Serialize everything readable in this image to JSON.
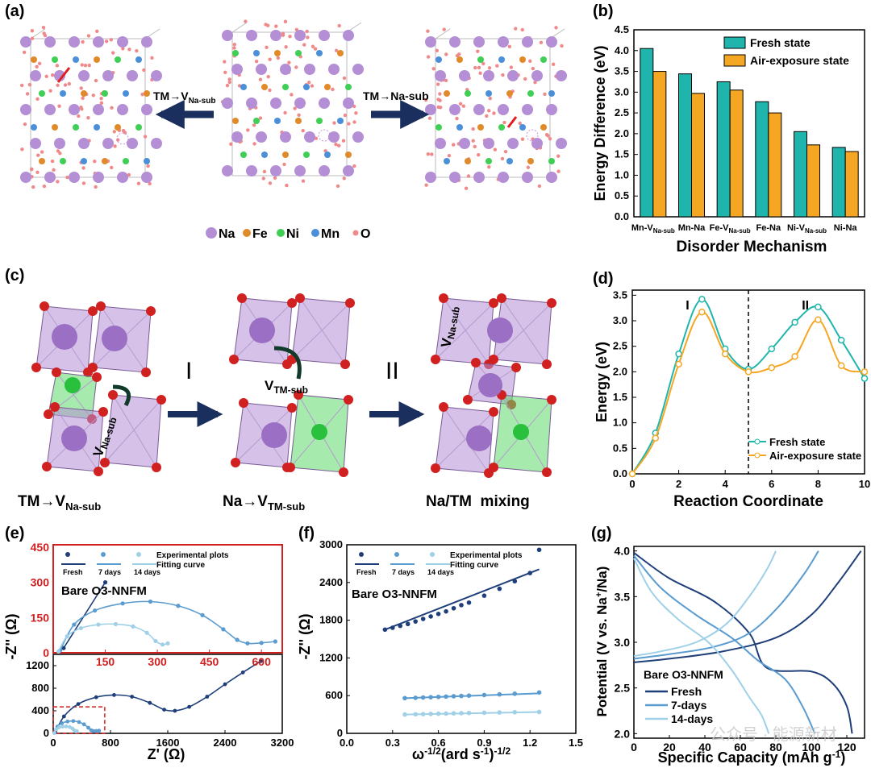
{
  "panels": {
    "a": {
      "label": "(a)",
      "arrow_left": "TM→V",
      "arrow_left_sub": "Na-sub",
      "arrow_right": "TM→Na-sub",
      "legend": [
        "Na",
        "Fe",
        "Ni",
        "Mn",
        "O"
      ],
      "colors": {
        "Na": "#b48fd6",
        "Fe": "#e08a2a",
        "Ni": "#3ecf54",
        "Mn": "#4a8fd8",
        "O": "#f08a8a"
      }
    },
    "c": {
      "label": "(c)",
      "step1": "I",
      "step2": "II",
      "struct1_vac": "V",
      "struct1_vac_sub": "Na-sub",
      "struct2_vac": "V",
      "struct2_vac_sub": "TM-sub",
      "struct3_vac": "V",
      "struct3_vac_sub": "Na-sub",
      "cap1": "TM→V",
      "cap1_sub": "Na-sub",
      "cap2": "Na→V",
      "cap2_sub": "TM-sub",
      "cap3": "Na/TM  mixing"
    }
  },
  "chart_data": [
    {
      "id": "b",
      "label": "(b)",
      "type": "bar",
      "categories": [
        "Mn-V",
        "Mn-Na",
        "Fe-V",
        "Fe-Na",
        "Ni-V",
        "Ni-Na"
      ],
      "category_subs": [
        "Na-sub",
        "",
        "Na-sub",
        "",
        "Na-sub",
        ""
      ],
      "series": [
        {
          "name": "Fresh state",
          "color": "#1fb5ad",
          "values": [
            4.05,
            3.44,
            3.25,
            2.77,
            2.05,
            1.67
          ]
        },
        {
          "name": "Air-exposure state",
          "color": "#f5a623",
          "values": [
            3.5,
            2.97,
            3.05,
            2.5,
            1.73,
            1.57
          ]
        }
      ],
      "xlabel": "Disorder Mechanism",
      "ylabel": "Energy Difference (eV)",
      "ylim": [
        0,
        4.5
      ],
      "yticks": [
        "0.0",
        "0.5",
        "1.0",
        "1.5",
        "2.0",
        "2.5",
        "3.0",
        "3.5",
        "4.0",
        "4.5"
      ]
    },
    {
      "id": "d",
      "label": "(d)",
      "type": "line",
      "x": [
        0,
        1,
        2,
        3,
        4,
        5,
        6,
        7,
        8,
        9,
        10
      ],
      "series": [
        {
          "name": "Fresh state",
          "color": "#1fb5ad",
          "values": [
            0.0,
            0.8,
            2.35,
            3.42,
            2.45,
            2.05,
            2.45,
            2.97,
            3.27,
            2.62,
            1.87
          ]
        },
        {
          "name": "Air-exposure state",
          "color": "#f5a623",
          "values": [
            0.0,
            0.7,
            2.15,
            3.17,
            2.35,
            2.0,
            2.08,
            2.3,
            3.02,
            2.12,
            2.0
          ]
        }
      ],
      "regions": [
        "I",
        "II"
      ],
      "divider_x": 5,
      "xlabel": "Reaction Coordinate",
      "ylabel": "Energy (eV)",
      "xlim": [
        0,
        10
      ],
      "ylim": [
        0,
        3.6
      ],
      "xticks": [
        "0",
        "2",
        "4",
        "6",
        "8",
        "10"
      ],
      "yticks": [
        "0.0",
        "0.5",
        "1.0",
        "1.5",
        "2.0",
        "2.5",
        "3.0",
        "3.5"
      ]
    },
    {
      "id": "e",
      "label": "(e)",
      "type": "scatter",
      "annotation": "Bare O3-NNFM",
      "legend_points": "Experimental plots",
      "legend_fit": "Fitting curve",
      "legend_groups": [
        "Fresh",
        "7 days",
        "14 days"
      ],
      "inset_xticks": [
        "150",
        "300",
        "450",
        "600"
      ],
      "inset_yticks": [
        "0",
        "150",
        "300",
        "450"
      ],
      "inset_xlim": [
        0,
        660
      ],
      "inset_ylim": [
        0,
        460
      ],
      "xticks": [
        "0",
        "800",
        "1600",
        "2400",
        "3200"
      ],
      "yticks": [
        "0",
        "400",
        "800",
        "1200"
      ],
      "xlim": [
        0,
        3200
      ],
      "ylim": [
        0,
        1400
      ],
      "xlabel": "Z' (Ω)",
      "ylabel": "-Z'' (Ω)",
      "series": [
        {
          "name": "Fresh",
          "color": "#1f3f7a",
          "points": [
            [
              30,
              20
            ],
            [
              150,
              300
            ],
            [
              350,
              520
            ],
            [
              600,
              640
            ],
            [
              850,
              680
            ],
            [
              1100,
              650
            ],
            [
              1350,
              540
            ],
            [
              1550,
              420
            ],
            [
              1700,
              400
            ],
            [
              1900,
              470
            ],
            [
              2150,
              650
            ],
            [
              2400,
              870
            ],
            [
              2650,
              1080
            ],
            [
              2900,
              1280
            ]
          ]
        },
        {
          "name": "7 days",
          "color": "#5a9bd0",
          "points": [
            [
              20,
              10
            ],
            [
              60,
              120
            ],
            [
              120,
              180
            ],
            [
              200,
              210
            ],
            [
              280,
              218
            ],
            [
              360,
              200
            ],
            [
              430,
              160
            ],
            [
              490,
              100
            ],
            [
              530,
              55
            ],
            [
              560,
              40
            ],
            [
              600,
              42
            ],
            [
              640,
              48
            ]
          ]
        },
        {
          "name": "14 days",
          "color": "#9fd0e8",
          "points": [
            [
              15,
              5
            ],
            [
              40,
              70
            ],
            [
              80,
              105
            ],
            [
              130,
              120
            ],
            [
              180,
              122
            ],
            [
              230,
              112
            ],
            [
              270,
              85
            ],
            [
              295,
              50
            ],
            [
              315,
              35
            ],
            [
              330,
              40
            ]
          ]
        }
      ]
    },
    {
      "id": "f",
      "label": "(f)",
      "type": "scatter",
      "annotation": "Bare O3-NNFM",
      "legend_points": "Experimental plots",
      "legend_fit": "Fitting curve",
      "legend_groups": [
        "Fresh",
        "7 days",
        "14 days"
      ],
      "xticks": [
        "0.0",
        "0.3",
        "0.6",
        "0.9",
        "1.2",
        "1.5"
      ],
      "yticks": [
        "0",
        "600",
        "1200",
        "1800",
        "2400",
        "3000"
      ],
      "xlim": [
        0,
        1.5
      ],
      "ylim": [
        0,
        3000
      ],
      "xlabel": "ω",
      "xlabel_sup": "-1/2",
      "xlabel_rest": "(ard s",
      "xlabel_sup2": "-1",
      "xlabel_end": ")",
      "xlabel_sup3": "-1/2",
      "ylabel": "-Z'' (Ω)",
      "series": [
        {
          "name": "Fresh",
          "color": "#1f3f7a",
          "x": [
            0.25,
            0.3,
            0.35,
            0.4,
            0.45,
            0.5,
            0.55,
            0.6,
            0.65,
            0.7,
            0.75,
            0.8,
            0.9,
            1.0,
            1.1,
            1.2,
            1.26
          ],
          "values": [
            1650,
            1680,
            1710,
            1740,
            1780,
            1820,
            1860,
            1900,
            1940,
            1990,
            2040,
            2080,
            2190,
            2300,
            2420,
            2550,
            2920
          ]
        },
        {
          "name": "7 days",
          "color": "#5a9bd0",
          "x": [
            0.38,
            0.45,
            0.5,
            0.55,
            0.6,
            0.65,
            0.7,
            0.75,
            0.8,
            0.9,
            1.0,
            1.1,
            1.26
          ],
          "values": [
            560,
            565,
            570,
            575,
            580,
            585,
            590,
            595,
            600,
            610,
            620,
            630,
            650
          ]
        },
        {
          "name": "14 days",
          "color": "#9fd0e8",
          "x": [
            0.38,
            0.45,
            0.5,
            0.55,
            0.6,
            0.65,
            0.7,
            0.75,
            0.8,
            0.9,
            1.0,
            1.1,
            1.26
          ],
          "values": [
            300,
            303,
            306,
            309,
            312,
            315,
            318,
            321,
            324,
            328,
            332,
            336,
            340
          ]
        }
      ]
    },
    {
      "id": "g",
      "label": "(g)",
      "type": "line",
      "annotation": "Bare O3-NNFM",
      "xlabel": "Specific Capacity (mAh g",
      "xlabel_sup": "-1",
      "xlabel_end": ")",
      "ylabel": "Potential (V vs. Na",
      "ylabel_sup": "+",
      "ylabel_end": "/Na)",
      "xlim": [
        0,
        130
      ],
      "ylim": [
        1.95,
        4.05
      ],
      "xticks": [
        "0",
        "20",
        "40",
        "60",
        "80",
        "100",
        "120"
      ],
      "yticks": [
        "2.0",
        "2.5",
        "3.0",
        "3.5",
        "4.0"
      ],
      "series": [
        {
          "name": "Fresh",
          "color": "#1f3f7a",
          "charge": [
            [
              0,
              2.78
            ],
            [
              20,
              2.82
            ],
            [
              50,
              2.9
            ],
            [
              80,
              3.05
            ],
            [
              100,
              3.3
            ],
            [
              115,
              3.65
            ],
            [
              128,
              4.0
            ]
          ],
          "discharge": [
            [
              0,
              3.98
            ],
            [
              20,
              3.7
            ],
            [
              45,
              3.45
            ],
            [
              65,
              3.1
            ],
            [
              75,
              2.72
            ],
            [
              100,
              2.68
            ],
            [
              112,
              2.55
            ],
            [
              120,
              2.3
            ],
            [
              123,
              2.0
            ]
          ]
        },
        {
          "name": "7-days",
          "color": "#5a9bd0",
          "charge": [
            [
              0,
              2.82
            ],
            [
              20,
              2.87
            ],
            [
              45,
              2.95
            ],
            [
              65,
              3.1
            ],
            [
              82,
              3.4
            ],
            [
              96,
              3.75
            ],
            [
              104,
              4.0
            ]
          ],
          "discharge": [
            [
              0,
              3.95
            ],
            [
              15,
              3.6
            ],
            [
              35,
              3.3
            ],
            [
              55,
              3.05
            ],
            [
              70,
              2.8
            ],
            [
              85,
              2.6
            ],
            [
              95,
              2.3
            ],
            [
              102,
              2.0
            ]
          ]
        },
        {
          "name": "14-days",
          "color": "#9fd0e8",
          "charge": [
            [
              0,
              2.85
            ],
            [
              15,
              2.9
            ],
            [
              35,
              3.0
            ],
            [
              52,
              3.2
            ],
            [
              65,
              3.5
            ],
            [
              75,
              3.8
            ],
            [
              80,
              4.0
            ]
          ],
          "discharge": [
            [
              0,
              3.92
            ],
            [
              10,
              3.55
            ],
            [
              25,
              3.25
            ],
            [
              42,
              3.0
            ],
            [
              55,
              2.7
            ],
            [
              65,
              2.4
            ],
            [
              72,
              2.2
            ],
            [
              76,
              2.0
            ]
          ]
        }
      ]
    }
  ],
  "watermark": "公众号 · 能源新材"
}
